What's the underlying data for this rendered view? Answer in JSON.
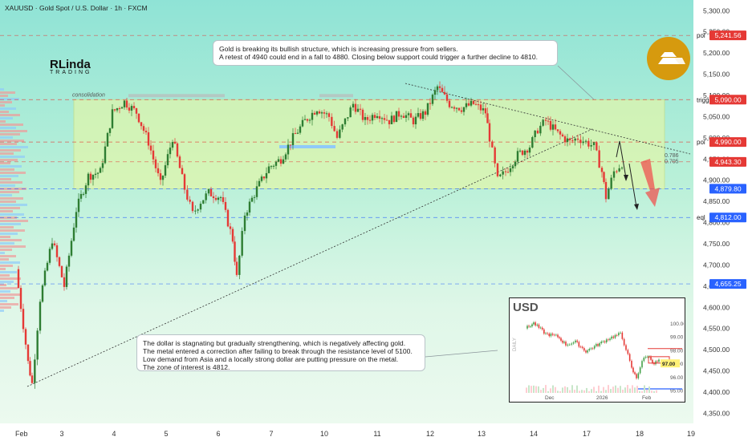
{
  "header": {
    "title": "XAUUSD · Gold Spot / U.S. Dollar · 1h · FXCM"
  },
  "logo": {
    "name": "RLinda",
    "subtitle": "TRADING"
  },
  "notes": {
    "top": [
      "Gold is breaking its bullish structure, which is increasing pressure from sellers.",
      "A retest of 4940 could end in a fall to 4880. Closing below support could trigger a further decline to 4810."
    ],
    "bottom": [
      "The dollar is stagnating but gradually strengthening, which is negatively affecting gold.",
      "The metal entered a correction after failing to break through the resistance level of 5100.",
      "Low demand from Asia and a locally strong dollar are putting pressure on the metal.",
      "The zone of interest is 4812."
    ]
  },
  "zone_label": "consolidation",
  "colors": {
    "up": "#2e7d32",
    "down": "#e53935",
    "zone": "#e6f7a6",
    "tag_red": "#e53935",
    "tag_blue": "#2962ff",
    "accent": "#d69a0e"
  },
  "chart_data": {
    "type": "candlestick",
    "symbol": "XAUUSD",
    "timeframe": "1h",
    "x_ticks": [
      "Feb",
      "3",
      "4",
      "5",
      "6",
      "7",
      "10",
      "11",
      "12",
      "13",
      "14",
      "17",
      "18",
      "19"
    ],
    "y_ticks": [
      "5,300.00",
      "5,250.00",
      "5,200.00",
      "5,150.00",
      "5,100.00",
      "5,050.00",
      "5,000.00",
      "4,950.00",
      "4,900.00",
      "4,850.00",
      "4,800.00",
      "4,750.00",
      "4,700.00",
      "4,650.00",
      "4,600.00",
      "4,550.00",
      "4,500.00",
      "4,450.00",
      "4,400.00",
      "4,350.00"
    ],
    "ylim": [
      4330,
      5310
    ],
    "levels": [
      {
        "label": "poi",
        "value": "5,241.56",
        "price": 5241.56,
        "color": "red"
      },
      {
        "label": "trigger",
        "value": "5,090.00",
        "price": 5090,
        "color": "red"
      },
      {
        "label": "poi",
        "value": "4,990.00",
        "price": 4990,
        "color": "red"
      },
      {
        "label": "",
        "value": "4,943.30",
        "price": 4943.3,
        "color": "red"
      },
      {
        "label": "",
        "value": "4,879.80",
        "price": 4879.8,
        "color": "blue"
      },
      {
        "label": "eql",
        "value": "4,812.00",
        "price": 4812,
        "color": "blue"
      },
      {
        "label": "",
        "value": "4,655.25",
        "price": 4655.25,
        "color": "blue"
      }
    ],
    "fib_labels": [
      "0.786",
      "0.705"
    ],
    "consolidation_zone": [
      4879.8,
      5090
    ],
    "price_path": [
      [
        0,
        4690
      ],
      [
        3,
        4470
      ],
      [
        4,
        4420
      ],
      [
        6,
        4620
      ],
      [
        9,
        4760
      ],
      [
        12,
        4650
      ],
      [
        15,
        4830
      ],
      [
        18,
        4910
      ],
      [
        21,
        4920
      ],
      [
        24,
        5060
      ],
      [
        27,
        5085
      ],
      [
        30,
        5060
      ],
      [
        33,
        4990
      ],
      [
        36,
        4890
      ],
      [
        39,
        5000
      ],
      [
        42,
        4880
      ],
      [
        44,
        4820
      ],
      [
        46,
        4850
      ],
      [
        48,
        4870
      ],
      [
        51,
        4860
      ],
      [
        54,
        4760
      ],
      [
        55,
        4670
      ],
      [
        57,
        4820
      ],
      [
        60,
        4880
      ],
      [
        63,
        4930
      ],
      [
        66,
        4950
      ],
      [
        69,
        5000
      ],
      [
        72,
        5040
      ],
      [
        75,
        5070
      ],
      [
        78,
        5050
      ],
      [
        80,
        5000
      ],
      [
        84,
        5080
      ],
      [
        87,
        5040
      ],
      [
        90,
        5060
      ],
      [
        93,
        5040
      ],
      [
        96,
        5060
      ],
      [
        99,
        5040
      ],
      [
        102,
        5060
      ],
      [
        105,
        5120
      ],
      [
        108,
        5080
      ],
      [
        111,
        5070
      ],
      [
        114,
        5080
      ],
      [
        117,
        5060
      ],
      [
        118,
        5000
      ],
      [
        120,
        4900
      ],
      [
        122,
        4920
      ],
      [
        125,
        4960
      ],
      [
        128,
        4980
      ],
      [
        130,
        5020
      ],
      [
        132,
        5040
      ],
      [
        135,
        5010
      ],
      [
        138,
        4990
      ],
      [
        140,
        5000
      ],
      [
        142,
        4990
      ],
      [
        144,
        4980
      ],
      [
        146,
        4920
      ],
      [
        147,
        4860
      ],
      [
        149,
        4920
      ],
      [
        151,
        4940
      ]
    ],
    "inset": {
      "title": "USD",
      "x_ticks": [
        "Dec",
        "2026",
        "Feb"
      ],
      "y_ticks": [
        "100.00",
        "99.00",
        "98.00",
        "97.00",
        "96.00",
        "95.00"
      ],
      "last_value": "97.00",
      "side_label": "DAILY"
    }
  }
}
